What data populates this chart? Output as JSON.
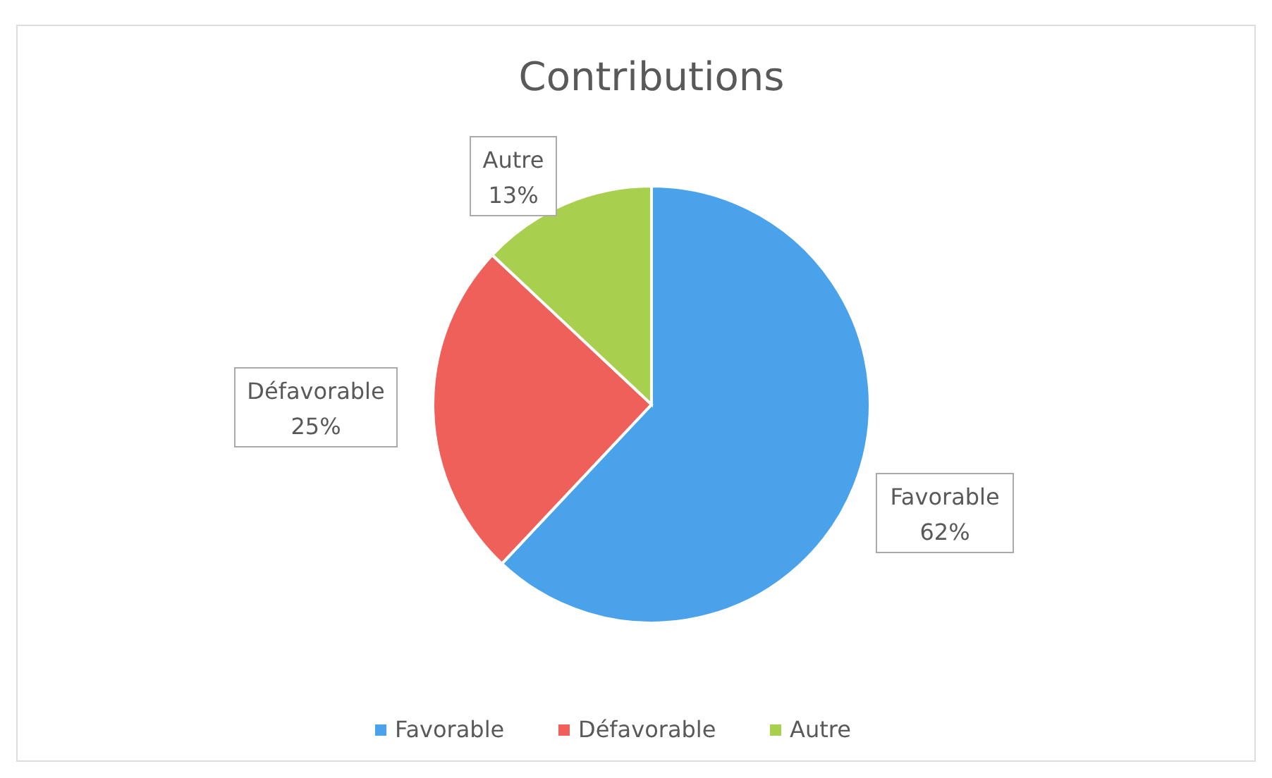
{
  "chart_data": {
    "type": "pie",
    "title": "Contributions",
    "categories": [
      "Favorable",
      "Défavorable",
      "Autre"
    ],
    "values": [
      62,
      25,
      13
    ],
    "value_labels": [
      "62%",
      "25%",
      "13%"
    ],
    "colors": [
      "#4aa3ea",
      "#f0605a",
      "#a9cf4e"
    ],
    "legend": "bottom"
  }
}
